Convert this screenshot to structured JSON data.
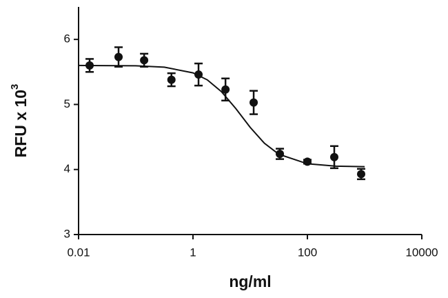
{
  "chart_data": {
    "type": "scatter",
    "x_label": "ng/ml",
    "y_label": "RFU x 10",
    "y_label_sup": "3",
    "xscale": "log",
    "xlim": [
      0.01,
      10000
    ],
    "xticks": [
      0.01,
      1,
      100,
      10000
    ],
    "ylim": [
      3,
      6.5
    ],
    "yticks": [
      3,
      4,
      5,
      6
    ],
    "color": "#111111",
    "points": {
      "x": [
        0.0156,
        0.05,
        0.14,
        0.42,
        1.25,
        3.7,
        11.5,
        33,
        100,
        295,
        870
      ],
      "values": [
        5.6,
        5.73,
        5.68,
        5.38,
        5.46,
        5.23,
        5.03,
        4.24,
        4.12,
        4.19,
        3.93
      ],
      "errors": [
        0.1,
        0.15,
        0.1,
        0.1,
        0.17,
        0.17,
        0.18,
        0.08,
        0.03,
        0.17,
        0.08
      ]
    },
    "fit": {
      "x": [
        0.01,
        0.1,
        0.316,
        1,
        1.78,
        3.16,
        5.62,
        10,
        17.8,
        31.6,
        100,
        316,
        1000
      ],
      "values": [
        5.6,
        5.594,
        5.573,
        5.486,
        5.378,
        5.195,
        4.936,
        4.648,
        4.402,
        4.235,
        4.088,
        4.051,
        4.043
      ]
    }
  }
}
